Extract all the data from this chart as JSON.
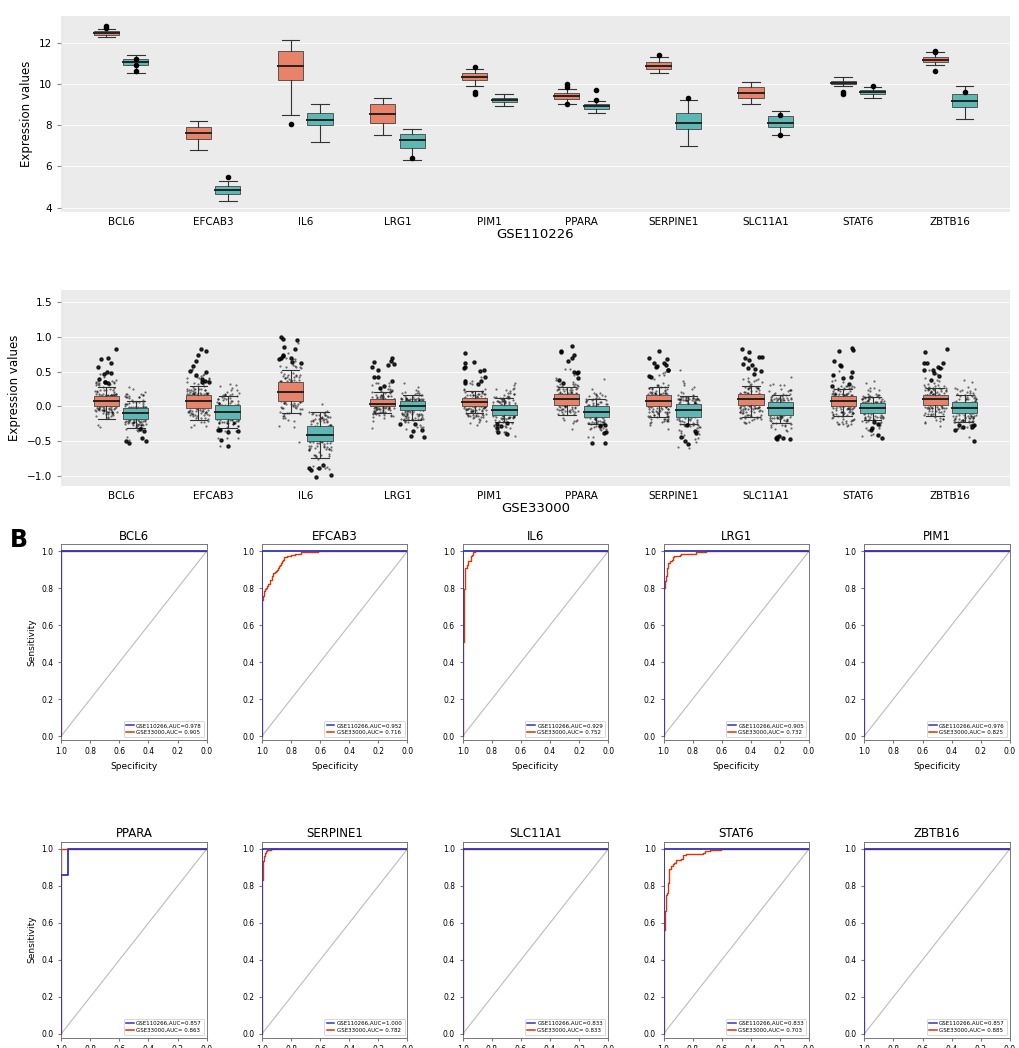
{
  "genes": [
    "BCL6",
    "EFCAB3",
    "IL6",
    "LRG1",
    "PIM1",
    "PPARA",
    "SERPINE1",
    "SLC11A1",
    "STAT6",
    "ZBTB16"
  ],
  "ad_color": "#E8836A",
  "control_color": "#5DB8B4",
  "bg_color": "#EBEBEB",
  "roc_blue": "#3333BB",
  "roc_red": "#DD3300",
  "gse1_ad": {
    "BCL6": [
      12.25,
      12.35,
      12.45,
      12.55,
      12.65
    ],
    "EFCAB3": [
      6.8,
      7.3,
      7.6,
      7.9,
      8.2
    ],
    "IL6": [
      8.5,
      10.2,
      10.85,
      11.6,
      12.1
    ],
    "LRG1": [
      7.5,
      8.1,
      8.55,
      9.0,
      9.3
    ],
    "PIM1": [
      9.9,
      10.2,
      10.35,
      10.5,
      10.7
    ],
    "PPARA": [
      9.0,
      9.25,
      9.4,
      9.55,
      9.75
    ],
    "SERPINE1": [
      10.5,
      10.7,
      10.85,
      11.05,
      11.3
    ],
    "SLC11A1": [
      9.0,
      9.3,
      9.55,
      9.85,
      10.1
    ],
    "STAT6": [
      9.9,
      10.0,
      10.05,
      10.15,
      10.35
    ],
    "ZBTB16": [
      10.9,
      11.05,
      11.15,
      11.3,
      11.55
    ]
  },
  "gse1_ctrl": {
    "BCL6": [
      10.5,
      10.9,
      11.05,
      11.2,
      11.4
    ],
    "EFCAB3": [
      4.3,
      4.65,
      4.85,
      5.05,
      5.3
    ],
    "IL6": [
      7.2,
      8.0,
      8.25,
      8.6,
      9.0
    ],
    "LRG1": [
      6.3,
      6.9,
      7.25,
      7.55,
      7.8
    ],
    "PIM1": [
      8.9,
      9.1,
      9.2,
      9.3,
      9.5
    ],
    "PPARA": [
      8.6,
      8.8,
      8.9,
      9.0,
      9.15
    ],
    "SERPINE1": [
      7.0,
      7.8,
      8.1,
      8.6,
      9.2
    ],
    "SLC11A1": [
      7.5,
      7.9,
      8.1,
      8.45,
      8.7
    ],
    "STAT6": [
      9.3,
      9.5,
      9.6,
      9.7,
      9.85
    ],
    "ZBTB16": [
      8.3,
      8.85,
      9.15,
      9.5,
      9.9
    ]
  },
  "gse1_ad_outliers": {
    "BCL6": [
      [
        12.7
      ],
      [
        12.8
      ]
    ],
    "EFCAB3": [
      [],
      []
    ],
    "IL6": [
      [
        8.05
      ],
      []
    ],
    "LRG1": [
      [],
      []
    ],
    "PIM1": [
      [
        9.5,
        9.6
      ],
      [
        10.8
      ]
    ],
    "PPARA": [
      [
        9.0,
        9.85,
        10.0
      ],
      []
    ],
    "SERPINE1": [
      [],
      [
        11.4
      ]
    ],
    "SLC11A1": [
      [],
      []
    ],
    "STAT6": [
      [
        9.5,
        9.6
      ],
      []
    ],
    "ZBTB16": [
      [
        10.6
      ],
      [
        11.55,
        11.6
      ]
    ]
  },
  "gse1_ctrl_outliers": {
    "BCL6": [
      [
        10.6,
        10.9,
        11.2
      ],
      []
    ],
    "EFCAB3": [
      [
        5.5
      ],
      []
    ],
    "IL6": [
      [],
      []
    ],
    "LRG1": [
      [
        6.4
      ],
      []
    ],
    "PIM1": [
      [],
      []
    ],
    "PPARA": [
      [],
      [
        9.2,
        9.7
      ]
    ],
    "SERPINE1": [
      [],
      [
        9.3
      ]
    ],
    "SLC11A1": [
      [
        7.5,
        8.5
      ],
      []
    ],
    "STAT6": [
      [],
      [
        9.9
      ]
    ],
    "ZBTB16": [
      [],
      [
        9.6
      ]
    ]
  },
  "gse2_ad": {
    "BCL6": [
      -0.18,
      0.0,
      0.08,
      0.15,
      0.28
    ],
    "EFCAB3": [
      -0.2,
      -0.02,
      0.07,
      0.16,
      0.3
    ],
    "IL6": [
      -0.1,
      0.08,
      0.2,
      0.35,
      0.52
    ],
    "LRG1": [
      -0.1,
      0.0,
      0.04,
      0.1,
      0.2
    ],
    "PIM1": [
      -0.1,
      0.0,
      0.06,
      0.12,
      0.22
    ],
    "PPARA": [
      -0.12,
      0.02,
      0.1,
      0.18,
      0.28
    ],
    "SERPINE1": [
      -0.15,
      0.0,
      0.08,
      0.16,
      0.28
    ],
    "SLC11A1": [
      -0.15,
      0.02,
      0.1,
      0.18,
      0.3
    ],
    "STAT6": [
      -0.14,
      0.0,
      0.08,
      0.15,
      0.25
    ],
    "ZBTB16": [
      -0.14,
      0.02,
      0.1,
      0.17,
      0.27
    ]
  },
  "gse2_ctrl": {
    "BCL6": [
      -0.32,
      -0.18,
      -0.1,
      -0.03,
      0.08
    ],
    "EFCAB3": [
      -0.32,
      -0.18,
      -0.08,
      0.02,
      0.15
    ],
    "IL6": [
      -0.75,
      -0.5,
      -0.42,
      -0.28,
      -0.08
    ],
    "LRG1": [
      -0.2,
      -0.06,
      0.0,
      0.07,
      0.17
    ],
    "PIM1": [
      -0.22,
      -0.12,
      -0.05,
      0.02,
      0.12
    ],
    "PPARA": [
      -0.26,
      -0.15,
      -0.08,
      0.0,
      0.1
    ],
    "SERPINE1": [
      -0.25,
      -0.15,
      -0.06,
      0.04,
      0.15
    ],
    "SLC11A1": [
      -0.24,
      -0.12,
      -0.03,
      0.06,
      0.16
    ],
    "STAT6": [
      -0.2,
      -0.1,
      -0.02,
      0.05,
      0.14
    ],
    "ZBTB16": [
      -0.22,
      -0.1,
      -0.02,
      0.06,
      0.16
    ]
  },
  "roc_data": {
    "BCL6": {
      "gse1_auc": 0.978,
      "gse2_auc": 0.905
    },
    "EFCAB3": {
      "gse1_auc": 0.952,
      "gse2_auc": 0.716
    },
    "IL6": {
      "gse1_auc": 0.929,
      "gse2_auc": 0.752
    },
    "LRG1": {
      "gse1_auc": 0.905,
      "gse2_auc": 0.732
    },
    "PIM1": {
      "gse1_auc": 0.976,
      "gse2_auc": 0.825
    },
    "PPARA": {
      "gse1_auc": 0.857,
      "gse2_auc": 0.863
    },
    "SERPINE1": {
      "gse1_auc": 1.0,
      "gse2_auc": 0.782
    },
    "SLC11A1": {
      "gse1_auc": 0.833,
      "gse2_auc": 0.833
    },
    "STAT6": {
      "gse1_auc": 0.833,
      "gse2_auc": 0.703
    },
    "ZBTB16": {
      "gse1_auc": 0.857,
      "gse2_auc": 0.885
    }
  }
}
